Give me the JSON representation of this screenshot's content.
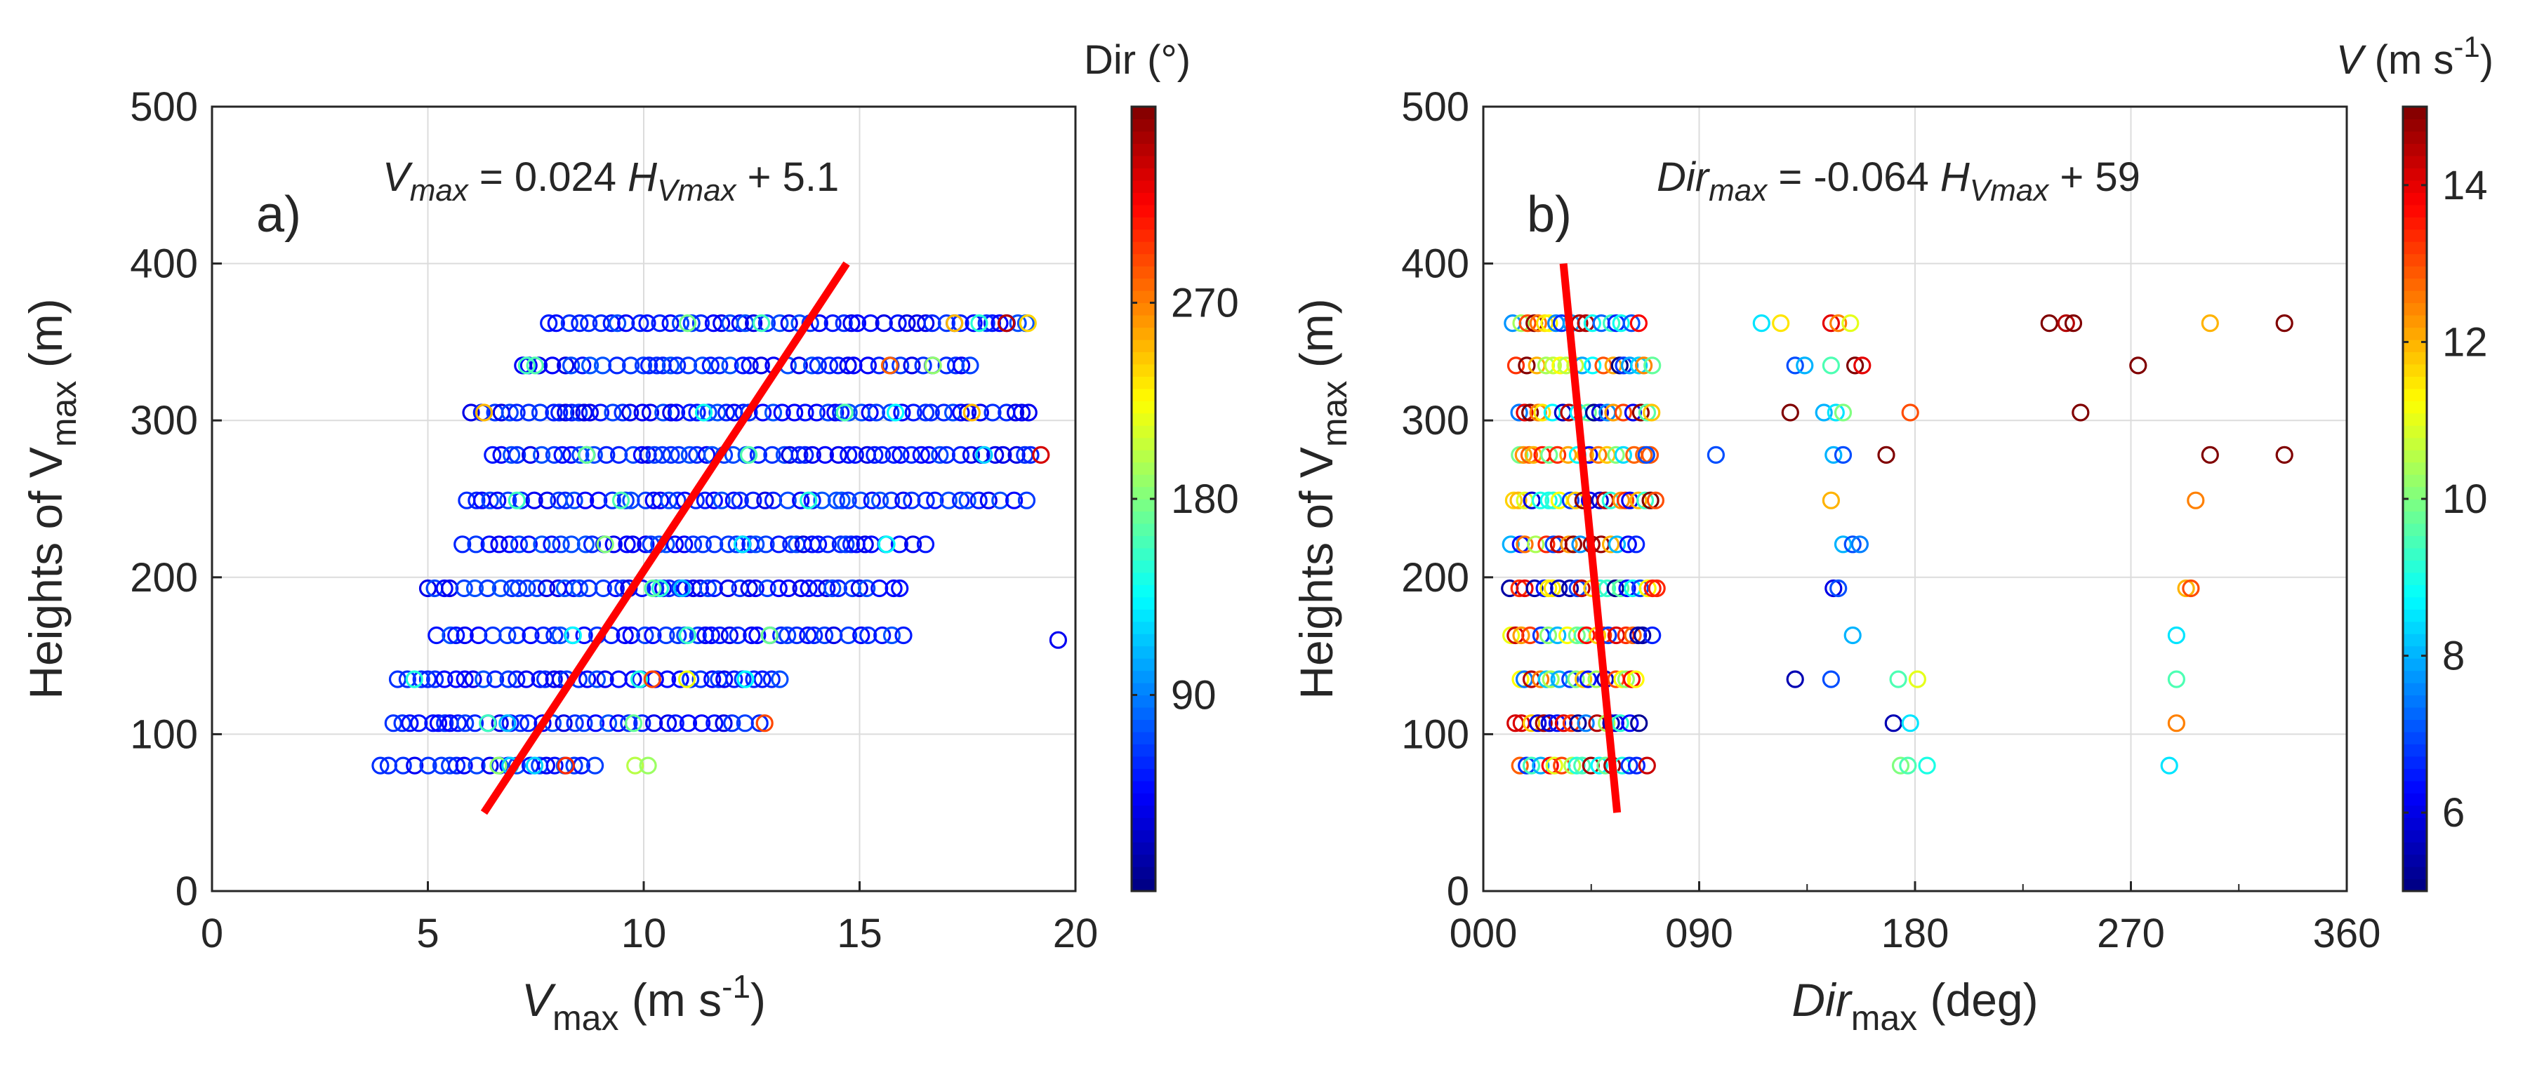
{
  "chart_data": [
    {
      "type": "scatter",
      "panel_label": "a)",
      "equation": {
        "lhs": "V",
        "lhs_sub": "max",
        "eq": " = 0.024 ",
        "h": "H",
        "h_sub": "Vmax",
        "rest": " + 5.1"
      },
      "xlabel": {
        "main": "V",
        "sub": "max",
        "unit": " (m s",
        "sup": "-1",
        "close": ")"
      },
      "ylabel": {
        "main": "Heights of V",
        "sub": "max",
        "unit": " (m)"
      },
      "xlim": [
        0,
        20
      ],
      "ylim": [
        0,
        500
      ],
      "xticks": [
        0,
        5,
        10,
        15,
        20
      ],
      "xtick_labels": [
        "0",
        "5",
        "10",
        "15",
        "20"
      ],
      "yticks": [
        0,
        100,
        200,
        300,
        400,
        500
      ],
      "ytick_labels": [
        "0",
        "100",
        "200",
        "300",
        "400",
        "500"
      ],
      "fit_line": {
        "x": [
          6.3,
          14.7
        ],
        "y": [
          50,
          400
        ]
      },
      "colorbar": {
        "title": "Dir (°)",
        "range": [
          0,
          360
        ],
        "ticks": [
          90,
          180,
          270
        ],
        "tick_labels": [
          "90",
          "180",
          "270"
        ]
      },
      "height_levels": [
        80,
        107,
        135,
        163,
        193,
        221,
        249,
        278,
        305,
        335,
        362
      ],
      "x_span": {
        "80": [
          3.9,
          9.0
        ],
        "107": [
          4.2,
          12.8
        ],
        "135": [
          4.3,
          13.4
        ],
        "163": [
          5.2,
          16.2
        ],
        "193": [
          5.0,
          16.0
        ],
        "221": [
          5.8,
          16.6
        ],
        "249": [
          5.9,
          19.0
        ],
        "278": [
          6.5,
          19.2
        ],
        "305": [
          6.0,
          19.1
        ],
        "335": [
          7.2,
          17.6
        ],
        "362": [
          7.8,
          18.9
        ]
      },
      "outliers": [
        {
          "x": 19.6,
          "y": 160,
          "dir": 40
        },
        {
          "x": 12.8,
          "y": 107,
          "dir": 290
        },
        {
          "x": 8.2,
          "y": 80,
          "dir": 300
        },
        {
          "x": 9.8,
          "y": 80,
          "dir": 200
        },
        {
          "x": 10.1,
          "y": 80,
          "dir": 190
        },
        {
          "x": 17.2,
          "y": 362,
          "dir": 250
        },
        {
          "x": 18.4,
          "y": 362,
          "dir": 340
        },
        {
          "x": 18.9,
          "y": 362,
          "dir": 240
        },
        {
          "x": 6.3,
          "y": 305,
          "dir": 250
        },
        {
          "x": 19.2,
          "y": 278,
          "dir": 330
        },
        {
          "x": 15.7,
          "y": 335,
          "dir": 280
        },
        {
          "x": 17.6,
          "y": 305,
          "dir": 250
        },
        {
          "x": 11.0,
          "y": 135,
          "dir": 220
        },
        {
          "x": 10.2,
          "y": 135,
          "dir": 290
        }
      ]
    },
    {
      "type": "scatter",
      "panel_label": "b)",
      "equation": {
        "lhs": "Dir",
        "lhs_sub": "max",
        "eq": " = -0.064 ",
        "h": "H",
        "h_sub": "Vmax",
        "rest": " + 59"
      },
      "xlabel": {
        "main": "Dir",
        "sub": "max",
        "unit": " (deg)"
      },
      "ylabel": {
        "main": "Heights of V",
        "sub": "max",
        "unit": " (m)"
      },
      "xlim": [
        0,
        360
      ],
      "ylim": [
        0,
        500
      ],
      "xticks": [
        0,
        90,
        180,
        270,
        360
      ],
      "xtick_labels": [
        "000",
        "090",
        "180",
        "270",
        "360"
      ],
      "yticks": [
        0,
        100,
        200,
        300,
        400,
        500
      ],
      "ytick_labels": [
        "0",
        "100",
        "200",
        "300",
        "400",
        "500"
      ],
      "fit_line": {
        "x": [
          33.4,
          55.8
        ],
        "y": [
          400,
          50
        ]
      },
      "colorbar": {
        "title_main": "V",
        "title_unit": " (m s",
        "title_sup": "-1",
        "title_close": ")",
        "range": [
          5,
          15
        ],
        "ticks": [
          6,
          8,
          10,
          12,
          14
        ],
        "tick_labels": [
          "6",
          "8",
          "10",
          "12",
          "14"
        ]
      },
      "height_levels": [
        80,
        107,
        135,
        163,
        193,
        221,
        249,
        278,
        305,
        335,
        362
      ],
      "dir_span": [
        10,
        75
      ],
      "outliers": [
        {
          "x": 116,
          "y": 362,
          "v": 8.5
        },
        {
          "x": 124,
          "y": 362,
          "v": 11.5
        },
        {
          "x": 145,
          "y": 362,
          "v": 14
        },
        {
          "x": 148,
          "y": 362,
          "v": 12.5
        },
        {
          "x": 153,
          "y": 362,
          "v": 11
        },
        {
          "x": 236,
          "y": 362,
          "v": 15
        },
        {
          "x": 243,
          "y": 362,
          "v": 14.5
        },
        {
          "x": 246,
          "y": 362,
          "v": 15
        },
        {
          "x": 303,
          "y": 362,
          "v": 12
        },
        {
          "x": 334,
          "y": 362,
          "v": 15
        },
        {
          "x": 130,
          "y": 335,
          "v": 7
        },
        {
          "x": 134,
          "y": 335,
          "v": 8
        },
        {
          "x": 145,
          "y": 335,
          "v": 9.5
        },
        {
          "x": 155,
          "y": 335,
          "v": 15
        },
        {
          "x": 158,
          "y": 335,
          "v": 14
        },
        {
          "x": 273,
          "y": 335,
          "v": 15
        },
        {
          "x": 128,
          "y": 305,
          "v": 15
        },
        {
          "x": 142,
          "y": 305,
          "v": 8
        },
        {
          "x": 147,
          "y": 305,
          "v": 8.5
        },
        {
          "x": 150,
          "y": 305,
          "v": 10
        },
        {
          "x": 178,
          "y": 305,
          "v": 13
        },
        {
          "x": 249,
          "y": 305,
          "v": 15
        },
        {
          "x": 68,
          "y": 278,
          "v": 7
        },
        {
          "x": 97,
          "y": 278,
          "v": 7
        },
        {
          "x": 146,
          "y": 278,
          "v": 8
        },
        {
          "x": 150,
          "y": 278,
          "v": 7
        },
        {
          "x": 168,
          "y": 278,
          "v": 15
        },
        {
          "x": 303,
          "y": 278,
          "v": 15
        },
        {
          "x": 334,
          "y": 278,
          "v": 15
        },
        {
          "x": 145,
          "y": 249,
          "v": 12
        },
        {
          "x": 297,
          "y": 249,
          "v": 12.5
        },
        {
          "x": 150,
          "y": 221,
          "v": 8
        },
        {
          "x": 154,
          "y": 221,
          "v": 7
        },
        {
          "x": 157,
          "y": 221,
          "v": 7.5
        },
        {
          "x": 146,
          "y": 193,
          "v": 6
        },
        {
          "x": 148,
          "y": 193,
          "v": 7
        },
        {
          "x": 293,
          "y": 193,
          "v": 12
        },
        {
          "x": 295,
          "y": 193,
          "v": 13
        },
        {
          "x": 154,
          "y": 163,
          "v": 8
        },
        {
          "x": 289,
          "y": 163,
          "v": 8.5
        },
        {
          "x": 130,
          "y": 135,
          "v": 5.5
        },
        {
          "x": 145,
          "y": 135,
          "v": 7
        },
        {
          "x": 173,
          "y": 135,
          "v": 9.5
        },
        {
          "x": 181,
          "y": 135,
          "v": 11
        },
        {
          "x": 289,
          "y": 135,
          "v": 9.5
        },
        {
          "x": 171,
          "y": 107,
          "v": 5.5
        },
        {
          "x": 178,
          "y": 107,
          "v": 8.5
        },
        {
          "x": 289,
          "y": 107,
          "v": 12.5
        },
        {
          "x": 174,
          "y": 80,
          "v": 10
        },
        {
          "x": 177,
          "y": 80,
          "v": 9.5
        },
        {
          "x": 185,
          "y": 80,
          "v": 9
        },
        {
          "x": 286,
          "y": 80,
          "v": 8.5
        }
      ]
    }
  ]
}
